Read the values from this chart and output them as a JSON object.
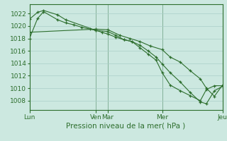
{
  "background_color": "#cce8e0",
  "grid_color": "#aacfc8",
  "line_color": "#2d6e2d",
  "marker_color": "#2d6e2d",
  "xlabel": "Pression niveau de la mer( hPa )",
  "xlabel_fontsize": 7.5,
  "tick_fontsize": 6.5,
  "ylim": [
    1006.5,
    1023.5
  ],
  "yticks": [
    1008,
    1010,
    1012,
    1014,
    1016,
    1018,
    1020,
    1022
  ],
  "xtick_labels": [
    "Lun",
    "Ven",
    "Mar",
    "Mer",
    "Jeu"
  ],
  "xtick_positions": [
    0,
    33,
    39,
    66,
    96
  ],
  "vline_positions": [
    0,
    33,
    39,
    66,
    96
  ],
  "series1_x": [
    0,
    4,
    7,
    14,
    18,
    22,
    26,
    30,
    33,
    36,
    39,
    43,
    47,
    51,
    55,
    59,
    63,
    66,
    70,
    75,
    80,
    85,
    88,
    92,
    96
  ],
  "series1_y": [
    1018.0,
    1021.2,
    1022.3,
    1021.0,
    1020.5,
    1020.2,
    1019.8,
    1019.5,
    1019.3,
    1019.0,
    1018.7,
    1018.2,
    1017.8,
    1017.5,
    1016.5,
    1015.5,
    1014.5,
    1012.5,
    1010.5,
    1009.6,
    1008.8,
    1008.0,
    1009.8,
    1010.4,
    1010.4
  ],
  "series2_x": [
    0,
    4,
    7,
    14,
    18,
    33,
    39,
    43,
    47,
    51,
    55,
    59,
    63,
    66,
    70,
    75,
    80,
    85,
    88,
    92,
    96
  ],
  "series2_y": [
    1021.1,
    1022.2,
    1022.5,
    1021.8,
    1021.0,
    1019.3,
    1019.1,
    1018.5,
    1017.8,
    1017.5,
    1016.9,
    1016.0,
    1015.0,
    1013.9,
    1012.5,
    1011.0,
    1009.3,
    1007.8,
    1007.5,
    1009.6,
    1010.3
  ],
  "series3_x": [
    0,
    33,
    39,
    45,
    50,
    55,
    60,
    66,
    70,
    75,
    80,
    85,
    88,
    92,
    96
  ],
  "series3_y": [
    1019.0,
    1019.5,
    1019.4,
    1018.5,
    1018.0,
    1017.5,
    1016.8,
    1016.2,
    1015.0,
    1014.2,
    1012.8,
    1011.5,
    1010.0,
    1008.7,
    1010.5
  ]
}
